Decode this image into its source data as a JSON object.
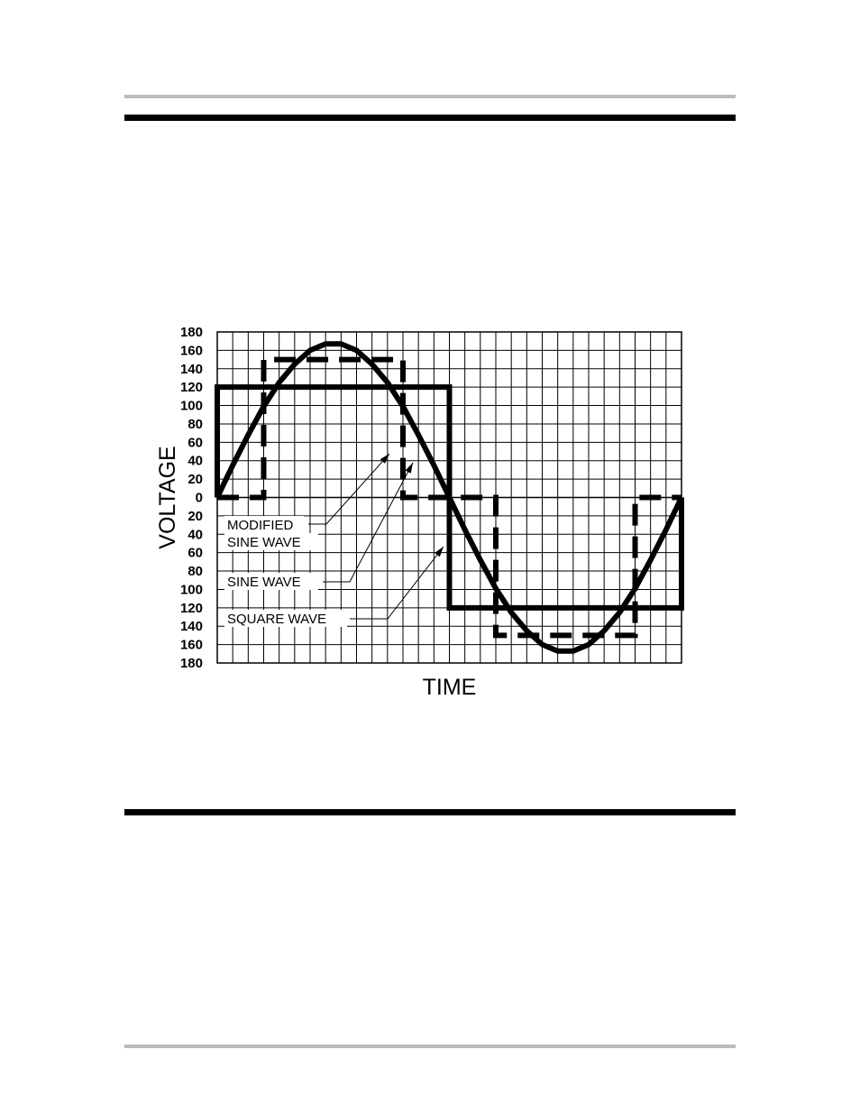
{
  "chart_data": {
    "type": "line",
    "xlabel": "TIME",
    "ylabel": "VOLTAGE",
    "xlim": [
      0,
      30
    ],
    "xticks": [
      0,
      1,
      2,
      3,
      4,
      5,
      6,
      7,
      8,
      9,
      10,
      11,
      12,
      13,
      14,
      15,
      16,
      17,
      18,
      19,
      20,
      21,
      22,
      23,
      24,
      25,
      26,
      27,
      28,
      29,
      30
    ],
    "ylim": [
      -180,
      180
    ],
    "yticks": [
      180,
      160,
      140,
      120,
      100,
      80,
      60,
      40,
      20,
      0,
      {
        "value": -20,
        "label": "20"
      },
      {
        "value": -40,
        "label": "40"
      },
      {
        "value": -60,
        "label": "60"
      },
      {
        "value": -80,
        "label": "80"
      },
      {
        "value": -100,
        "label": "100"
      },
      {
        "value": -120,
        "label": "120"
      },
      {
        "value": -140,
        "label": "140"
      },
      {
        "value": -160,
        "label": "160"
      },
      {
        "value": -180,
        "label": "180"
      }
    ],
    "grid": true,
    "series": [
      {
        "name": "SINE WAVE",
        "color": "#000000",
        "dash": "solid",
        "x": [
          0,
          1,
          2,
          3,
          4,
          5,
          6,
          7,
          8,
          9,
          10,
          11,
          12,
          13,
          14,
          15,
          16,
          17,
          18,
          19,
          20,
          21,
          22,
          23,
          24,
          25,
          26,
          27,
          28,
          29,
          30
        ],
        "values": [
          0,
          35,
          68,
          99,
          125,
          145,
          160,
          167,
          167,
          160,
          145,
          125,
          99,
          68,
          35,
          0,
          -35,
          -68,
          -99,
          -125,
          -145,
          -160,
          -167,
          -167,
          -160,
          -145,
          -125,
          -99,
          -68,
          -35,
          0
        ]
      },
      {
        "name": "SQUARE WAVE",
        "color": "#000000",
        "dash": "solid",
        "x": [
          0,
          0,
          15,
          15,
          30,
          30
        ],
        "values": [
          0,
          120,
          120,
          -120,
          -120,
          0
        ]
      },
      {
        "name": "MODIFIED SINE WAVE",
        "color": "#000000",
        "dash": "dashed",
        "x": [
          0,
          3,
          3,
          12,
          12,
          18,
          18,
          27,
          27,
          30
        ],
        "values": [
          0,
          0,
          150,
          150,
          0,
          0,
          -150,
          -150,
          0,
          0
        ]
      }
    ],
    "annotations": [
      "MODIFIED",
      "SINE WAVE",
      "SINE WAVE",
      "SQUARE WAVE"
    ]
  }
}
